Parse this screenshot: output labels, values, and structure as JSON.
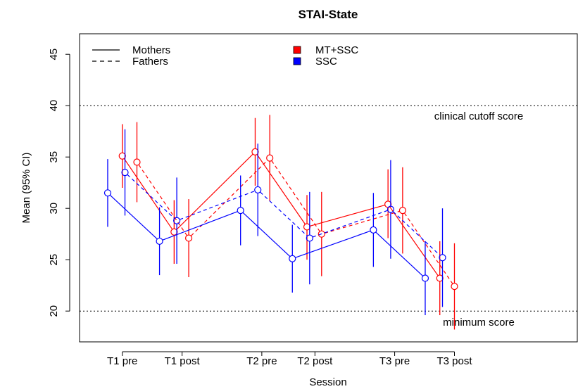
{
  "chart_data": {
    "type": "line",
    "title": "STAI-State",
    "xlabel": "Session",
    "ylabel": "Mean (95% CI)",
    "categories": [
      "T1 pre",
      "T1 post",
      "T2 pre",
      "T2 post",
      "T3 pre",
      "T3 post"
    ],
    "yticks": [
      "20",
      "25",
      "30",
      "35",
      "40",
      "45"
    ],
    "ylim": [
      17,
      47
    ],
    "reference_lines": [
      {
        "label": "clinical cutoff score",
        "value": 40
      },
      {
        "label": "minimum score",
        "value": 20
      }
    ],
    "legend": {
      "line_types": [
        {
          "label": "Mothers",
          "style": "solid"
        },
        {
          "label": "Fathers",
          "style": "dashed"
        }
      ],
      "groups": [
        {
          "label": "MT+SSC",
          "color": "#ff0000"
        },
        {
          "label": "SSC",
          "color": "#0000ff"
        }
      ]
    },
    "series": [
      {
        "name": "MT+SSC",
        "parent": "Mothers",
        "color": "#ff0000",
        "style": "solid",
        "x": [
          1.0,
          2.95,
          6.0,
          7.95,
          11.0,
          12.95
        ],
        "values": [
          35.1,
          27.7,
          35.5,
          28.2,
          30.4,
          23.2
        ],
        "lower": [
          32.0,
          24.6,
          32.2,
          25.0,
          27.1,
          19.6
        ],
        "upper": [
          38.2,
          30.8,
          38.8,
          31.3,
          33.8,
          26.8
        ]
      },
      {
        "name": "MT+SSC",
        "parent": "Fathers",
        "color": "#ff0000",
        "style": "dashed",
        "x": [
          1.55,
          3.5,
          6.55,
          8.5,
          11.55,
          13.5
        ],
        "values": [
          34.5,
          27.1,
          34.9,
          27.5,
          29.8,
          22.4
        ],
        "lower": [
          30.6,
          23.3,
          30.7,
          23.4,
          25.6,
          18.2
        ],
        "upper": [
          38.4,
          30.9,
          39.1,
          31.6,
          34.0,
          26.6
        ]
      },
      {
        "name": "SSC",
        "parent": "Mothers",
        "color": "#0000ff",
        "style": "solid",
        "x": [
          0.45,
          2.4,
          5.45,
          7.4,
          10.45,
          12.4
        ],
        "values": [
          31.5,
          26.8,
          29.8,
          25.1,
          27.9,
          23.2
        ],
        "lower": [
          28.2,
          23.5,
          26.4,
          21.8,
          24.3,
          19.6
        ],
        "upper": [
          34.8,
          30.1,
          33.2,
          28.4,
          31.5,
          26.8
        ]
      },
      {
        "name": "SSC",
        "parent": "Fathers",
        "color": "#0000ff",
        "style": "dashed",
        "x": [
          1.1,
          3.05,
          6.1,
          8.05,
          11.1,
          13.05
        ],
        "values": [
          33.5,
          28.8,
          31.8,
          27.1,
          29.9,
          25.2
        ],
        "lower": [
          29.3,
          24.6,
          27.3,
          22.6,
          25.1,
          20.4
        ],
        "upper": [
          37.7,
          33.0,
          36.3,
          31.6,
          34.7,
          30.0
        ]
      }
    ]
  }
}
